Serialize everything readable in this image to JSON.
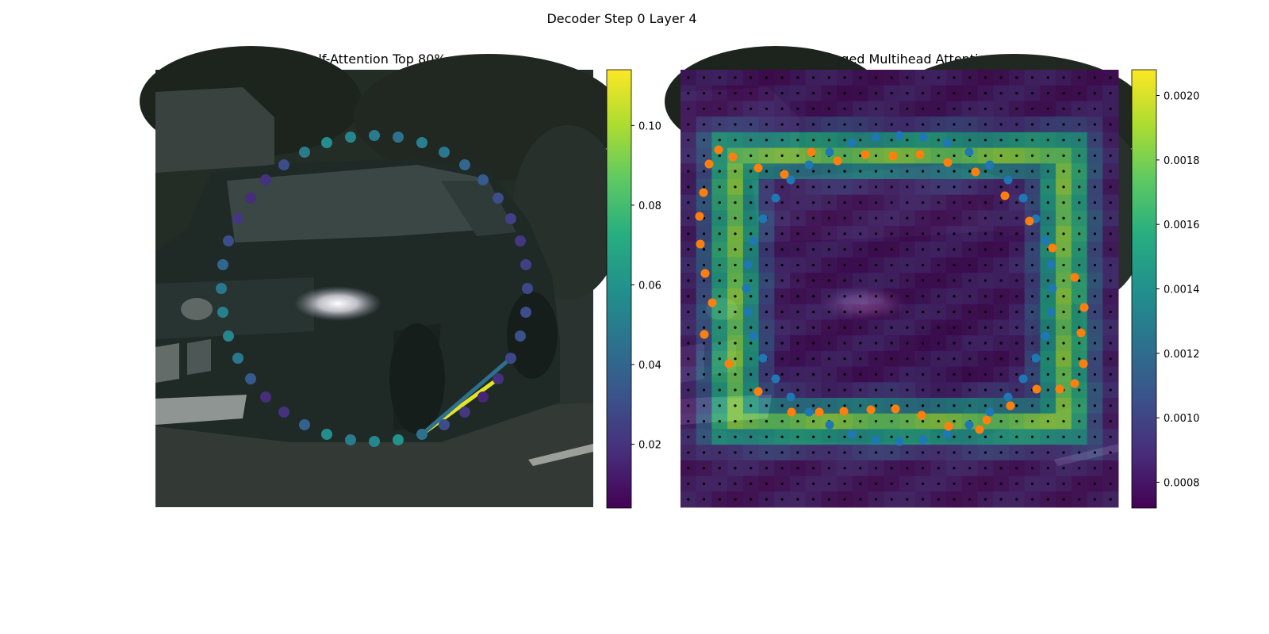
{
  "figure": {
    "suptitle": "Decoder Step 0 Layer 4"
  },
  "chart_data": [
    {
      "type": "scatter",
      "title": "Self-Attention Top 80%",
      "background": "photo",
      "colormap": "viridis",
      "colorbar": {
        "range": [
          0.004,
          0.114
        ],
        "ticks": [
          "0.02",
          "0.04",
          "0.06",
          "0.08",
          "0.10"
        ],
        "tick_values": [
          0.02,
          0.04,
          0.06,
          0.08,
          0.1
        ]
      },
      "xlim": [
        0,
        552
      ],
      "ylim": [
        552,
        0
      ],
      "contour_points": {
        "x": [
          276,
          306,
          336,
          364,
          390,
          413,
          432,
          448,
          460,
          467,
          469,
          467,
          460,
          448,
          432,
          413,
          390,
          364,
          336,
          306,
          276,
          246,
          216,
          188,
          162,
          139,
          120,
          104,
          92,
          85,
          83,
          85,
          92,
          104,
          120,
          139,
          162,
          188,
          216,
          246
        ],
        "y": [
          83,
          85,
          92,
          104,
          120,
          139,
          162,
          188,
          216,
          246,
          276,
          306,
          336,
          364,
          390,
          413,
          432,
          448,
          460,
          467,
          469,
          467,
          460,
          448,
          432,
          413,
          390,
          364,
          336,
          306,
          276,
          246,
          216,
          188,
          162,
          139,
          120,
          104,
          92,
          85
        ],
        "values": [
          0.05,
          0.045,
          0.052,
          0.048,
          0.04,
          0.035,
          0.03,
          0.025,
          0.022,
          0.025,
          0.028,
          0.03,
          0.032,
          0.028,
          0.02,
          0.015,
          0.022,
          0.03,
          0.045,
          0.06,
          0.055,
          0.05,
          0.058,
          0.038,
          0.02,
          0.018,
          0.035,
          0.048,
          0.055,
          0.052,
          0.048,
          0.04,
          0.03,
          0.022,
          0.018,
          0.02,
          0.03,
          0.05,
          0.058,
          0.055
        ]
      },
      "attention_lines": [
        {
          "from": 18,
          "to": 14,
          "value": 0.11
        },
        {
          "from": 18,
          "to": 13,
          "value": 0.045
        }
      ]
    },
    {
      "type": "heatmap",
      "title": "Averaged Multihead Attention",
      "background": "photo",
      "colormap": "viridis",
      "colorbar": {
        "range": [
          0.00072,
          0.00208
        ],
        "ticks": [
          "0.0008",
          "0.0010",
          "0.0012",
          "0.0014",
          "0.0016",
          "0.0018",
          "0.0020"
        ],
        "tick_values": [
          0.0008,
          0.001,
          0.0012,
          0.0014,
          0.0016,
          0.0018,
          0.002
        ]
      },
      "xlim": [
        0,
        552
      ],
      "ylim": [
        552,
        0
      ],
      "grid_size": 28,
      "series": [
        {
          "name": "reference_points",
          "color": "#1f77b4",
          "x": [
            276,
            306,
            336,
            364,
            390,
            413,
            432,
            448,
            460,
            467,
            469,
            467,
            460,
            448,
            432,
            413,
            390,
            364,
            336,
            306,
            276,
            246,
            216,
            188,
            162,
            139,
            120,
            104,
            92,
            85,
            83,
            85,
            92,
            104,
            120,
            139,
            162,
            188,
            216,
            246
          ],
          "y": [
            83,
            85,
            92,
            104,
            120,
            139,
            162,
            188,
            216,
            246,
            276,
            306,
            336,
            364,
            390,
            413,
            432,
            448,
            460,
            467,
            469,
            467,
            460,
            448,
            432,
            413,
            390,
            364,
            336,
            306,
            276,
            246,
            216,
            188,
            162,
            139,
            120,
            104,
            92,
            85
          ]
        },
        {
          "name": "sampling_points",
          "color": "#ff7f0e",
          "x": [
            233,
            268,
            302,
            337,
            372,
            409,
            440,
            469,
            497,
            509,
            505,
            508,
            497,
            478,
            449,
            416,
            386,
            377,
            338,
            304,
            271,
            240,
            206,
            175,
            140,
            98,
            61,
            30,
            40,
            31,
            25,
            24,
            29,
            36,
            48,
            66,
            98,
            131,
            165,
            198
          ],
          "y": [
            107,
            109,
            107,
            117,
            129,
            159,
            191,
            225,
            262,
            300,
            332,
            371,
            396,
            403,
            403,
            424,
            442,
            454,
            450,
            436,
            428,
            429,
            431,
            432,
            432,
            406,
            371,
            334,
            294,
            257,
            220,
            185,
            155,
            119,
            101,
            110,
            124,
            132,
            104,
            115
          ]
        }
      ]
    }
  ]
}
